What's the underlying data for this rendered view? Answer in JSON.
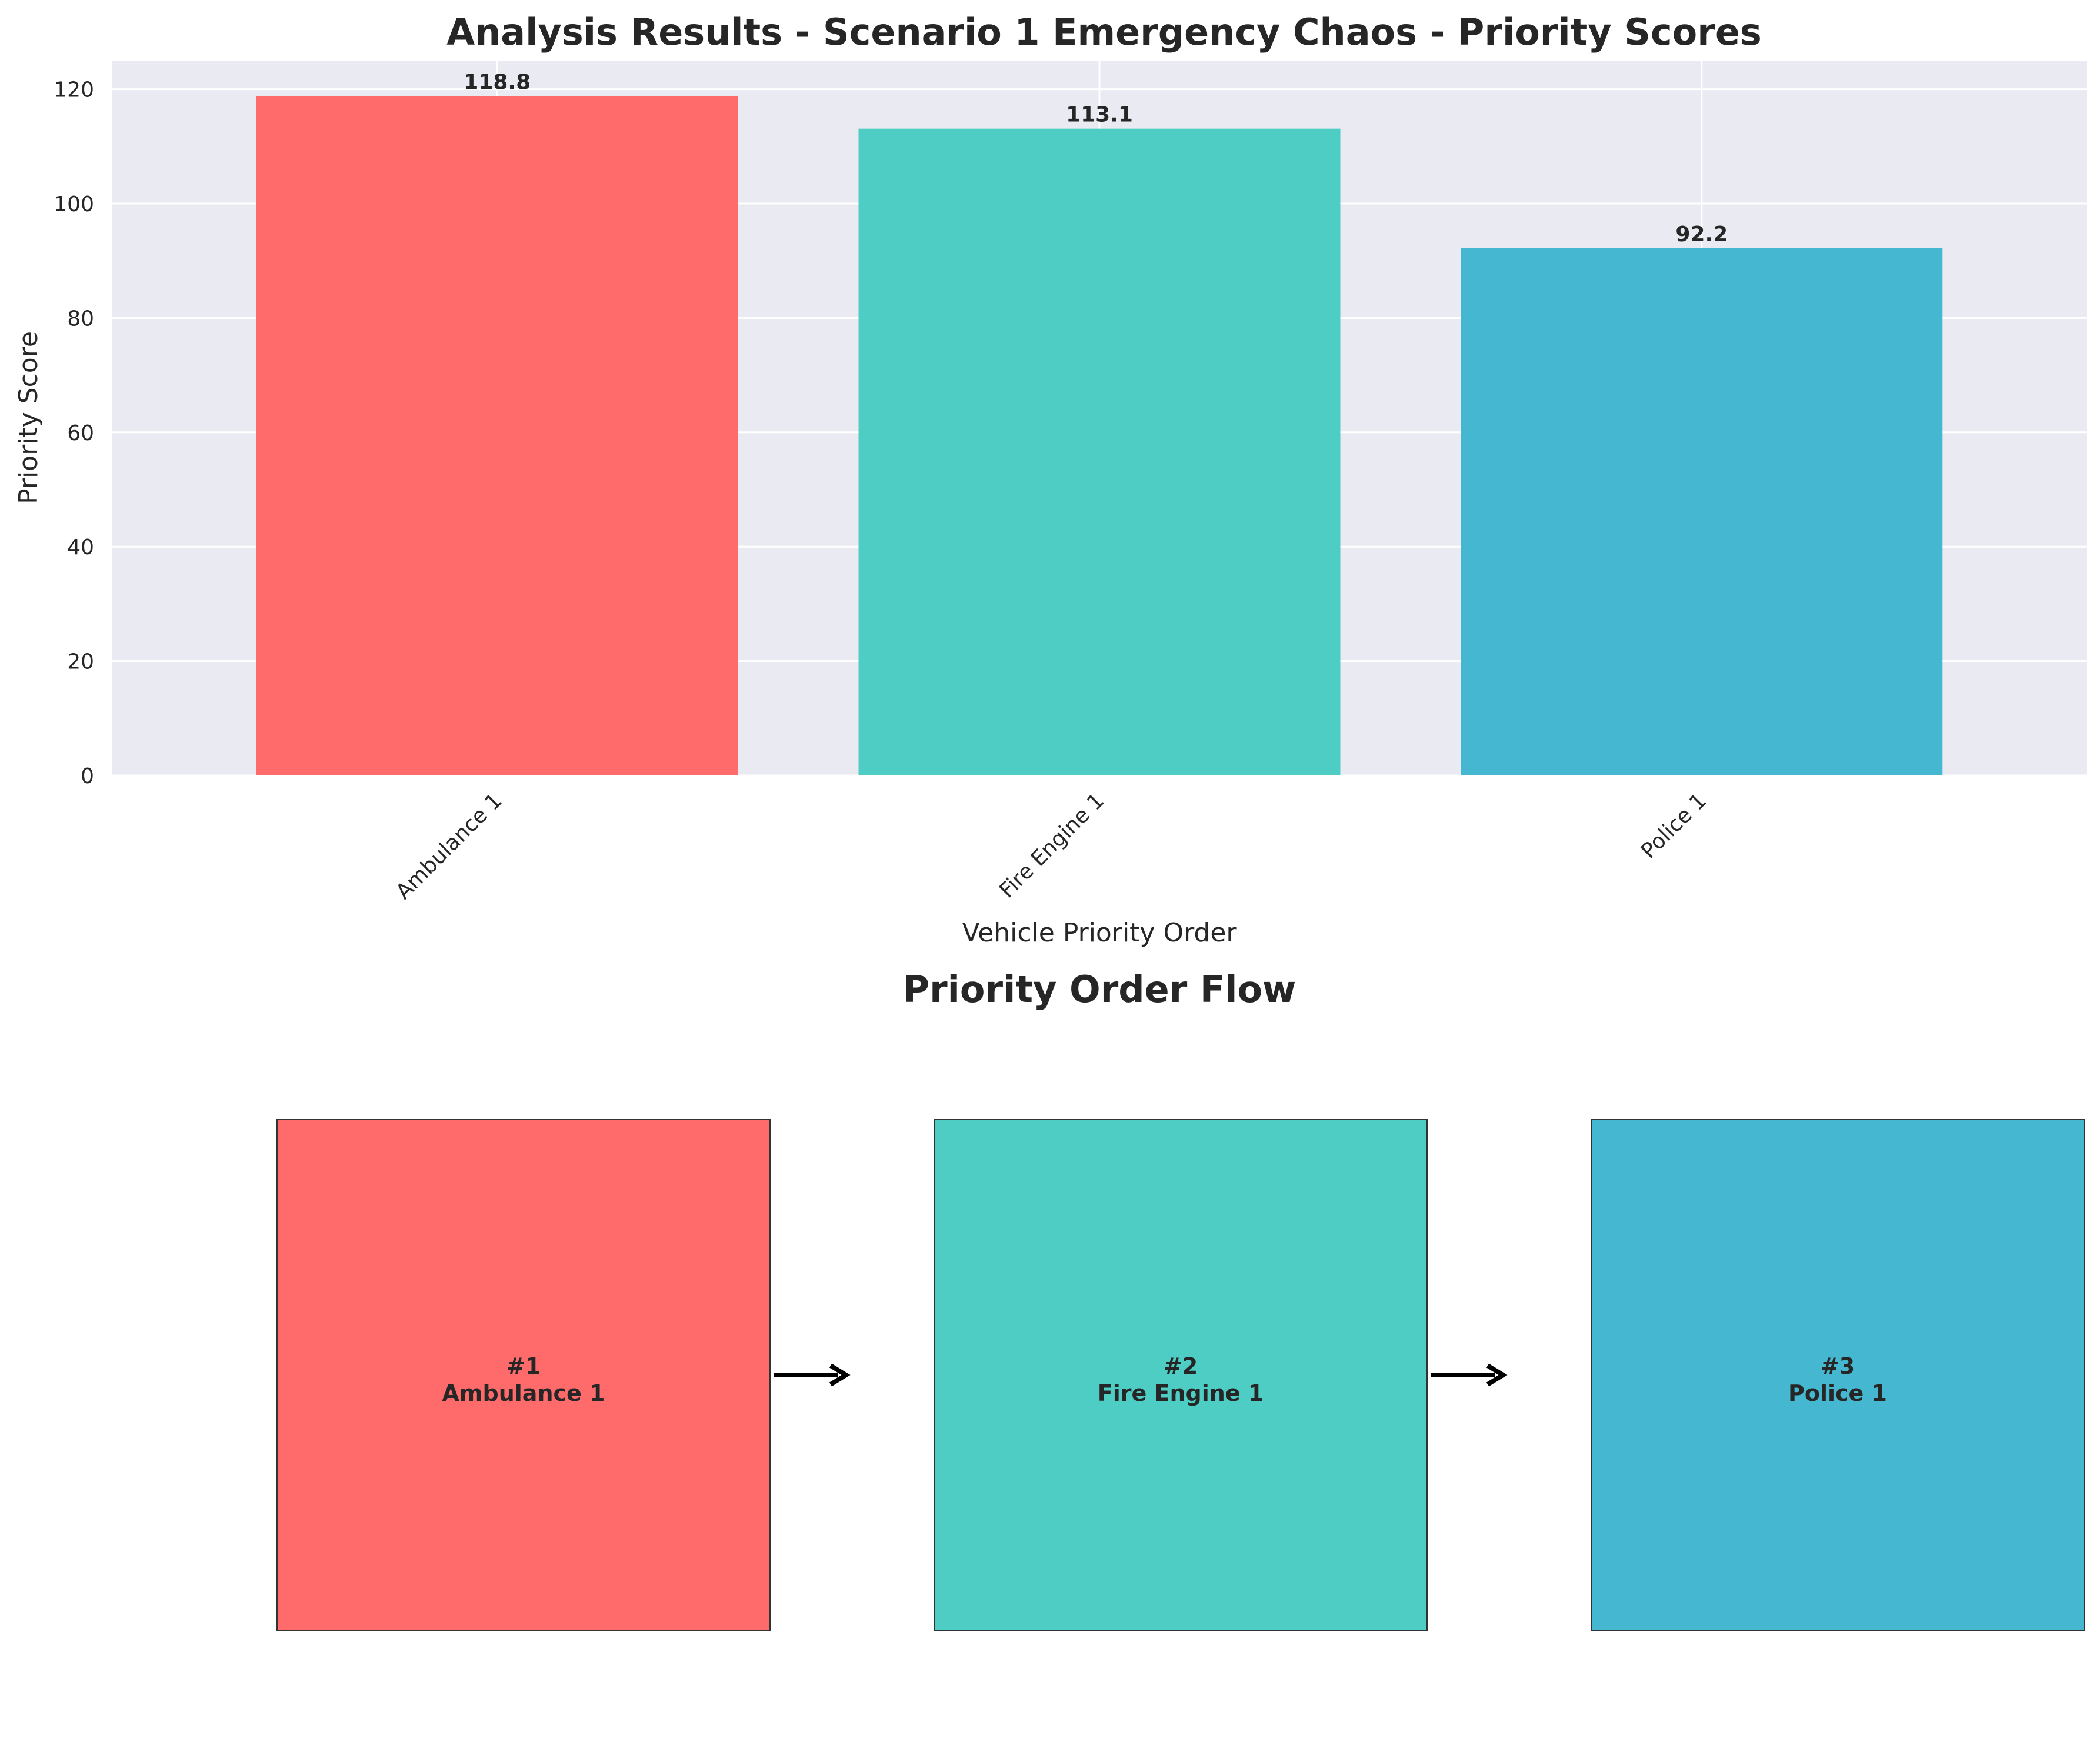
{
  "chart_data": [
    {
      "type": "bar",
      "title": "Analysis Results - Scenario 1 Emergency Chaos - Priority Scores",
      "xlabel": "Vehicle Priority Order",
      "ylabel": "Priority Score",
      "categories": [
        "Ambulance 1",
        "Fire Engine 1",
        "Police 1"
      ],
      "values": [
        118.8,
        113.1,
        92.2
      ],
      "value_labels": [
        "118.8",
        "113.1",
        "92.2"
      ],
      "colors": [
        "#ff6b6b",
        "#4ecdc4",
        "#45b7d1"
      ],
      "ylim": [
        0,
        125
      ],
      "yticks": [
        0,
        20,
        40,
        60,
        80,
        100,
        120
      ],
      "grid": true
    },
    {
      "type": "diagram",
      "title": "Priority Order Flow",
      "nodes": [
        {
          "rank": "#1",
          "name": "Ambulance 1",
          "color": "#ff6b6b"
        },
        {
          "rank": "#2",
          "name": "Fire Engine 1",
          "color": "#4ecdc4"
        },
        {
          "rank": "#3",
          "name": "Police 1",
          "color": "#45b7d1"
        }
      ],
      "edges": [
        [
          0,
          1
        ],
        [
          1,
          2
        ]
      ]
    }
  ],
  "colors": {
    "plot_background": "#eaeaf2",
    "grid": "#ffffff",
    "text": "#262626",
    "arrow": "#000000",
    "box_edge": "#333333"
  }
}
